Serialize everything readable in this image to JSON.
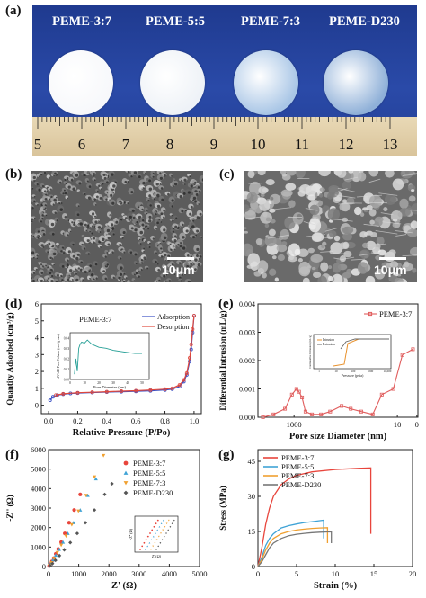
{
  "panel_a": {
    "label": "(a)",
    "samples": [
      {
        "name": "PEME-3:7",
        "disc_color": "#f7f8fb"
      },
      {
        "name": "PEME-5:5",
        "disc_color": "#eef2f7"
      },
      {
        "name": "PEME-7:3",
        "disc_color": "#a9c6e6"
      },
      {
        "name": "PEME-D230",
        "disc_color": "#8fb0d8"
      }
    ],
    "ruler_numbers": [
      "5",
      "6",
      "7",
      "8",
      "9",
      "10",
      "11",
      "12",
      "13"
    ]
  },
  "panel_b": {
    "label": "(b)",
    "scale": "10μm"
  },
  "panel_c": {
    "label": "(c)",
    "scale": "10μm"
  },
  "chart_data": [
    {
      "id": "d",
      "label": "(d)",
      "type": "line",
      "sample": "PEME-3:7",
      "xlabel": "Relative Pressure (P/Po)",
      "ylabel": "Quantity Adsorbed (cm³/g)",
      "xlim": [
        -0.05,
        1.05
      ],
      "ylim": [
        -0.5,
        6
      ],
      "xticks": [
        "0.0",
        "0.2",
        "0.4",
        "0.6",
        "0.8",
        "1.0"
      ],
      "yticks": [
        "0",
        "1",
        "2",
        "3",
        "4",
        "5",
        "6"
      ],
      "series": [
        {
          "name": "Adsorption",
          "color": "#3a4fc4",
          "x": [
            0.01,
            0.03,
            0.06,
            0.1,
            0.15,
            0.2,
            0.3,
            0.4,
            0.5,
            0.6,
            0.7,
            0.8,
            0.85,
            0.9,
            0.93,
            0.95,
            0.97,
            0.98,
            0.99,
            1.0
          ],
          "y": [
            0.3,
            0.5,
            0.6,
            0.65,
            0.7,
            0.72,
            0.75,
            0.78,
            0.8,
            0.82,
            0.85,
            0.9,
            0.95,
            1.1,
            1.4,
            1.8,
            2.6,
            3.3,
            4.3,
            5.3
          ]
        },
        {
          "name": "Desorption",
          "color": "#e0483c",
          "x": [
            1.0,
            0.99,
            0.98,
            0.97,
            0.95,
            0.93,
            0.9,
            0.85,
            0.8,
            0.7,
            0.6,
            0.5,
            0.4,
            0.3,
            0.2,
            0.1,
            0.05
          ],
          "y": [
            5.3,
            4.5,
            3.6,
            2.8,
            1.9,
            1.5,
            1.2,
            1.0,
            0.95,
            0.9,
            0.86,
            0.83,
            0.8,
            0.77,
            0.74,
            0.68,
            0.6
          ]
        }
      ],
      "inset": {
        "xlabel": "Pore Diameter (nm)",
        "ylabel": "dV/dD Pore Volume (cm³/g·nm)",
        "xticks": [
          "0",
          "10",
          "20",
          "30",
          "40",
          "50"
        ],
        "yticks": [
          "0.00",
          "0.01",
          "0.02",
          "0.03",
          "0.04"
        ],
        "xlim": [
          0,
          55
        ],
        "ylim": [
          0,
          0.045
        ],
        "x": [
          3,
          4,
          5,
          6,
          7,
          8,
          10,
          12,
          15,
          20,
          25,
          30,
          35,
          40,
          45,
          50
        ],
        "y": [
          0.005,
          0.02,
          0.008,
          0.03,
          0.034,
          0.036,
          0.035,
          0.038,
          0.034,
          0.031,
          0.03,
          0.028,
          0.027,
          0.026,
          0.025,
          0.025
        ]
      }
    },
    {
      "id": "e",
      "label": "(e)",
      "type": "line",
      "sample": "PEME-3:7",
      "xlabel": "Pore size Diameter (nm)",
      "ylabel": "Differential Intrusion (mL/g)",
      "xscale": "log",
      "ylim": [
        0,
        0.004
      ],
      "xticks": [
        "1000",
        "10",
        "0"
      ],
      "yticks": [
        "0.000",
        "0.001",
        "0.002",
        "0.003",
        "0.004"
      ],
      "series": [
        {
          "name": "PEME-3:7",
          "color": "#e05c5c",
          "x": [
            4000,
            2500,
            1500,
            1100,
            900,
            800,
            700,
            600,
            450,
            300,
            200,
            120,
            80,
            50,
            30,
            20,
            12,
            8,
            5
          ],
          "y": [
            0.0,
            0.0001,
            0.0003,
            0.0008,
            0.001,
            0.0009,
            0.0007,
            0.0002,
            0.0001,
            0.0001,
            0.0002,
            0.0004,
            0.0003,
            0.0002,
            0.0001,
            0.0008,
            0.001,
            0.0022,
            0.0024
          ]
        }
      ],
      "inset": {
        "xlabel": "Pressure (psia)",
        "ylabel": "Cumulative Intrusion (mL/g)",
        "legend": [
          "Intrusion",
          "Extrusion"
        ],
        "xticks": [
          "1",
          "10",
          "100",
          "1000",
          "10,000"
        ]
      }
    },
    {
      "id": "f",
      "label": "(f)",
      "type": "scatter",
      "xlabel": "Z' (Ω)",
      "ylabel": "-Z'' (Ω)",
      "xlim": [
        0,
        5000
      ],
      "ylim": [
        0,
        6000
      ],
      "xticks": [
        "0",
        "1000",
        "2000",
        "3000",
        "4000",
        "5000"
      ],
      "yticks": [
        "0",
        "1000",
        "2000",
        "3000",
        "4000",
        "5000",
        "6000"
      ],
      "series": [
        {
          "name": "PEME-3:7",
          "color": "#e8453c",
          "marker": "circle",
          "x": [
            20,
            60,
            110,
            170,
            240,
            320,
            420,
            540,
            680,
            850,
            1050
          ],
          "y": [
            30,
            120,
            260,
            430,
            650,
            900,
            1250,
            1700,
            2250,
            2900,
            3700
          ]
        },
        {
          "name": "PEME-5:5",
          "color": "#3fa3d6",
          "marker": "triangle-up",
          "x": [
            30,
            80,
            150,
            240,
            350,
            480,
            640,
            830,
            1050,
            1300,
            1570
          ],
          "y": [
            40,
            160,
            340,
            580,
            880,
            1250,
            1700,
            2250,
            2900,
            3650,
            4500
          ]
        },
        {
          "name": "PEME-7:3",
          "color": "#f0a030",
          "marker": "triangle-down",
          "x": [
            40,
            100,
            180,
            290,
            420,
            580,
            770,
            990,
            1240,
            1520,
            1820
          ],
          "y": [
            50,
            200,
            420,
            720,
            1100,
            1570,
            2150,
            2850,
            3650,
            4600,
            5700
          ]
        },
        {
          "name": "PEME-D230",
          "color": "#555555",
          "marker": "diamond",
          "x": [
            50,
            130,
            230,
            360,
            520,
            720,
            950,
            1220,
            1520,
            1860,
            2100
          ],
          "y": [
            40,
            150,
            320,
            560,
            860,
            1230,
            1700,
            2250,
            2900,
            3700,
            4250
          ]
        }
      ],
      "inset": {
        "xlabel": "Z' (Ω)",
        "ylabel": "-Z'' (Ω)"
      }
    },
    {
      "id": "g",
      "label": "(g)",
      "type": "line",
      "xlabel": "Strain (%)",
      "ylabel": "Stress (MPa)",
      "xlim": [
        0,
        20
      ],
      "ylim": [
        0,
        50
      ],
      "xticks": [
        "0",
        "5",
        "10",
        "15",
        "20"
      ],
      "yticks": [
        "0",
        "15",
        "30",
        "45"
      ],
      "series": [
        {
          "name": "PEME-3:7",
          "color": "#e8453c",
          "x": [
            0,
            0.5,
            1,
            1.5,
            2,
            3,
            4,
            5,
            7,
            10,
            13,
            14.6,
            14.6
          ],
          "y": [
            0,
            8,
            18,
            25,
            30,
            35,
            37.5,
            39,
            40.5,
            41.5,
            42,
            42.2,
            14
          ]
        },
        {
          "name": "PEME-5:5",
          "color": "#3fa3d6",
          "x": [
            0,
            0.5,
            1,
            1.5,
            2,
            3,
            4,
            5,
            6,
            7,
            8,
            8.5,
            8.5
          ],
          "y": [
            0,
            4,
            9,
            12,
            14,
            16.5,
            17.5,
            18.2,
            18.8,
            19.2,
            19.6,
            19.8,
            12
          ]
        },
        {
          "name": "PEME-7:3",
          "color": "#f0a030",
          "x": [
            0,
            0.5,
            1,
            1.5,
            2,
            3,
            4,
            5,
            6,
            7,
            8,
            9,
            9,
            9
          ],
          "y": [
            0,
            3,
            7,
            10,
            12,
            14,
            15,
            15.6,
            16,
            16.3,
            16.5,
            16.6,
            14,
            10
          ]
        },
        {
          "name": "PEME-D230",
          "color": "#777777",
          "x": [
            0,
            0.5,
            1,
            1.5,
            2,
            3,
            4,
            5,
            6,
            7,
            8,
            9,
            9.5,
            9.5
          ],
          "y": [
            0,
            2,
            5,
            8,
            10,
            12,
            13.2,
            13.8,
            14.2,
            14.5,
            14.7,
            14.8,
            14.9,
            10
          ]
        }
      ]
    }
  ]
}
